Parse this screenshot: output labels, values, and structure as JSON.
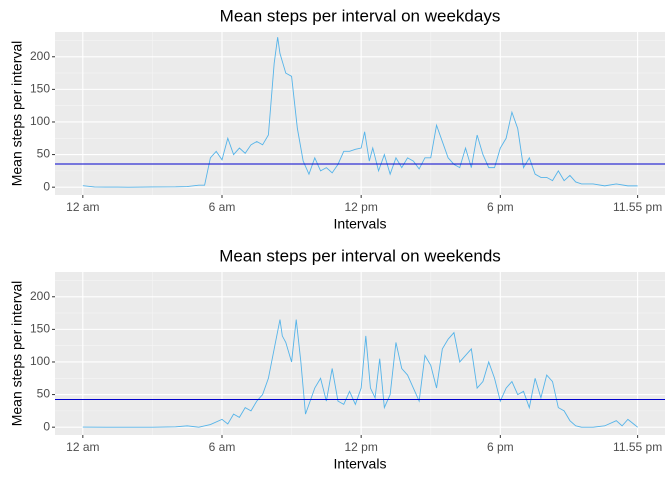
{
  "chart_data": [
    {
      "type": "line",
      "title": "Mean steps per interval on weekdays",
      "xlabel": "Intervals",
      "ylabel": "Mean steps per interval",
      "x": [
        0,
        0.5,
        1,
        1.5,
        2,
        3,
        4,
        4.5,
        5,
        5.25,
        5.5,
        5.75,
        6,
        6.25,
        6.5,
        6.75,
        7,
        7.25,
        7.5,
        7.75,
        8,
        8.25,
        8.4,
        8.5,
        8.75,
        9,
        9.25,
        9.5,
        9.75,
        10,
        10.25,
        10.5,
        10.75,
        11,
        11.25,
        11.5,
        11.75,
        12,
        12.15,
        12.35,
        12.5,
        12.75,
        13,
        13.25,
        13.5,
        13.75,
        14,
        14.25,
        14.5,
        14.75,
        15,
        15.25,
        15.5,
        15.75,
        16,
        16.25,
        16.5,
        16.75,
        17,
        17.25,
        17.5,
        17.75,
        18,
        18.25,
        18.5,
        18.75,
        19,
        19.25,
        19.5,
        19.75,
        20,
        20.25,
        20.5,
        20.75,
        21,
        21.25,
        21.5,
        22,
        22.5,
        23,
        23.5,
        23.92
      ],
      "series": [
        {
          "color": "#56b4e9",
          "values": [
            2.3,
            0.4,
            0.2,
            0.1,
            0,
            0.3,
            0.5,
            1,
            3,
            3,
            45,
            55,
            42,
            75,
            50,
            60,
            52,
            65,
            70,
            65,
            80,
            190,
            230,
            205,
            175,
            170,
            90,
            40,
            20,
            45,
            25,
            30,
            22,
            35,
            55,
            55,
            58,
            60,
            85,
            40,
            60,
            25,
            50,
            20,
            45,
            30,
            45,
            40,
            28,
            45,
            45,
            95,
            70,
            45,
            35,
            30,
            60,
            30,
            80,
            50,
            30,
            30,
            60,
            75,
            115,
            90,
            30,
            45,
            20,
            15,
            15,
            10,
            25,
            10,
            18,
            8,
            5,
            5,
            2,
            5,
            2,
            2
          ]
        }
      ],
      "hline": 35.6,
      "hline_color": "#0000cd",
      "xlim": [
        -1.2,
        25.1
      ],
      "ylim": [
        -12,
        238
      ],
      "xticks": [
        {
          "value": 0,
          "label": "12 am"
        },
        {
          "value": 6,
          "label": "6 am"
        },
        {
          "value": 12,
          "label": "12 pm"
        },
        {
          "value": 18,
          "label": "6 pm"
        },
        {
          "value": 23.92,
          "label": "11.55 pm"
        }
      ],
      "yticks": [
        0,
        50,
        100,
        150,
        200
      ],
      "grid": true
    },
    {
      "type": "line",
      "title": "Mean steps per interval on weekends",
      "xlabel": "Intervals",
      "ylabel": "Mean steps per interval",
      "x": [
        0,
        1,
        2,
        3,
        4,
        4.5,
        5,
        5.5,
        6,
        6.25,
        6.5,
        6.75,
        7,
        7.25,
        7.5,
        7.75,
        8,
        8.25,
        8.5,
        8.6,
        8.75,
        9,
        9.2,
        9.4,
        9.6,
        9.8,
        10,
        10.25,
        10.5,
        10.75,
        11,
        11.25,
        11.5,
        11.75,
        12,
        12.2,
        12.4,
        12.6,
        12.8,
        13,
        13.25,
        13.5,
        13.75,
        14,
        14.25,
        14.5,
        14.75,
        15,
        15.25,
        15.5,
        15.75,
        16,
        16.25,
        16.5,
        16.75,
        17,
        17.25,
        17.5,
        17.75,
        18,
        18.25,
        18.5,
        18.75,
        19,
        19.25,
        19.5,
        19.75,
        20,
        20.25,
        20.5,
        20.75,
        21,
        21.25,
        21.5,
        22,
        22.5,
        23,
        23.25,
        23.5,
        23.92
      ],
      "series": [
        {
          "color": "#56b4e9",
          "values": [
            0.2,
            0,
            0,
            0,
            0.5,
            2,
            0,
            4,
            12,
            5,
            20,
            15,
            30,
            25,
            40,
            50,
            75,
            120,
            165,
            140,
            130,
            100,
            165,
            100,
            20,
            40,
            60,
            75,
            40,
            90,
            40,
            35,
            55,
            35,
            60,
            140,
            60,
            45,
            105,
            30,
            50,
            130,
            90,
            80,
            60,
            40,
            110,
            95,
            60,
            120,
            135,
            145,
            100,
            110,
            120,
            60,
            70,
            100,
            75,
            40,
            60,
            70,
            50,
            55,
            30,
            75,
            45,
            80,
            70,
            30,
            25,
            10,
            2,
            0,
            0,
            2,
            10,
            2,
            12,
            0
          ]
        }
      ],
      "hline": 42.4,
      "hline_color": "#0000cd",
      "xlim": [
        -1.2,
        25.1
      ],
      "ylim": [
        -12,
        238
      ],
      "xticks": [
        {
          "value": 0,
          "label": "12 am"
        },
        {
          "value": 6,
          "label": "6 am"
        },
        {
          "value": 12,
          "label": "12 pm"
        },
        {
          "value": 18,
          "label": "6 pm"
        },
        {
          "value": 23.92,
          "label": "11.55 pm"
        }
      ],
      "yticks": [
        0,
        50,
        100,
        150,
        200
      ],
      "grid": true
    }
  ]
}
